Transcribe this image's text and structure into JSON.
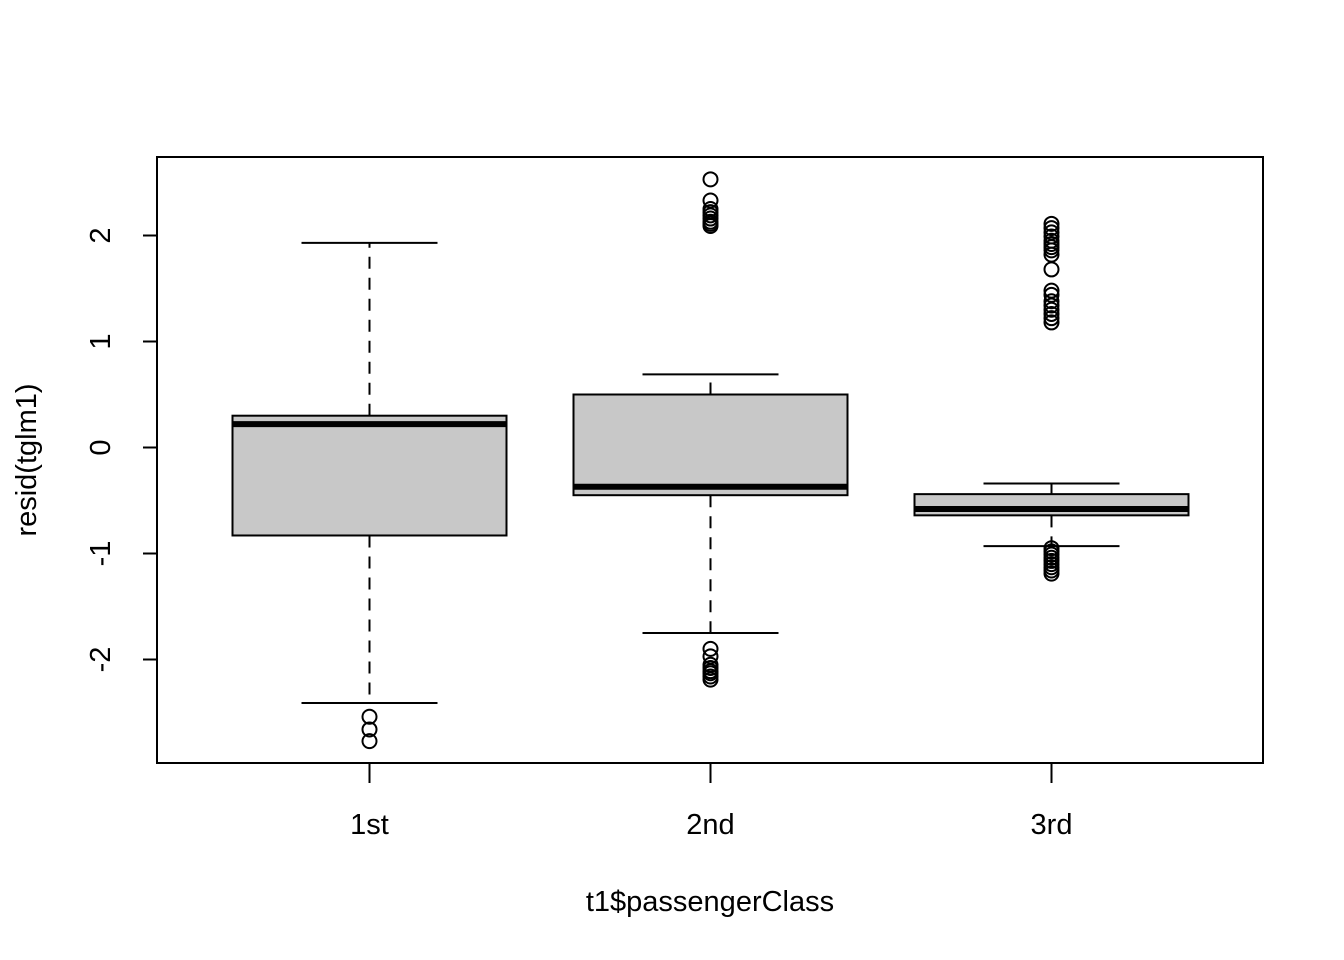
{
  "chart_data": {
    "type": "boxplot",
    "xlabel": "t1$passengerClass",
    "ylabel": "resid(tglm1)",
    "categories": [
      "1st",
      "2nd",
      "3rd"
    ],
    "ylim": [
      -2.97,
      2.75
    ],
    "yticks": [
      -2,
      -1,
      0,
      1,
      2
    ],
    "ytick_labels": [
      "-2",
      "-1",
      "0",
      "1",
      "2"
    ],
    "grid": false,
    "box_fill": "#c8c8c8",
    "line_color": "#000000",
    "boxes": [
      {
        "category": "1st",
        "whisker_low": -2.41,
        "q1": -0.83,
        "median": 0.22,
        "q3": 0.3,
        "whisker_high": 1.93,
        "outliers": [
          -2.54,
          -2.66,
          -2.77
        ]
      },
      {
        "category": "2nd",
        "whisker_low": -1.75,
        "q1": -0.45,
        "median": -0.37,
        "q3": 0.5,
        "whisker_high": 0.69,
        "outliers": [
          2.53,
          2.33,
          2.25,
          2.22,
          2.19,
          2.16,
          2.13,
          2.11,
          2.09,
          -1.9,
          -1.97,
          -2.05,
          -2.08,
          -2.11,
          -2.13,
          -2.16,
          -2.19
        ]
      },
      {
        "category": "3rd",
        "whisker_low": -0.93,
        "q1": -0.64,
        "median": -0.58,
        "q3": -0.44,
        "whisker_high": -0.34,
        "outliers": [
          2.11,
          2.07,
          2.03,
          1.99,
          1.95,
          1.92,
          1.89,
          1.86,
          1.82,
          1.68,
          1.48,
          1.44,
          1.38,
          1.34,
          1.3,
          1.26,
          1.22,
          1.18,
          -0.95,
          -0.98,
          -1.01,
          -1.04,
          -1.07,
          -1.1,
          -1.13,
          -1.16,
          -1.19
        ]
      }
    ]
  }
}
